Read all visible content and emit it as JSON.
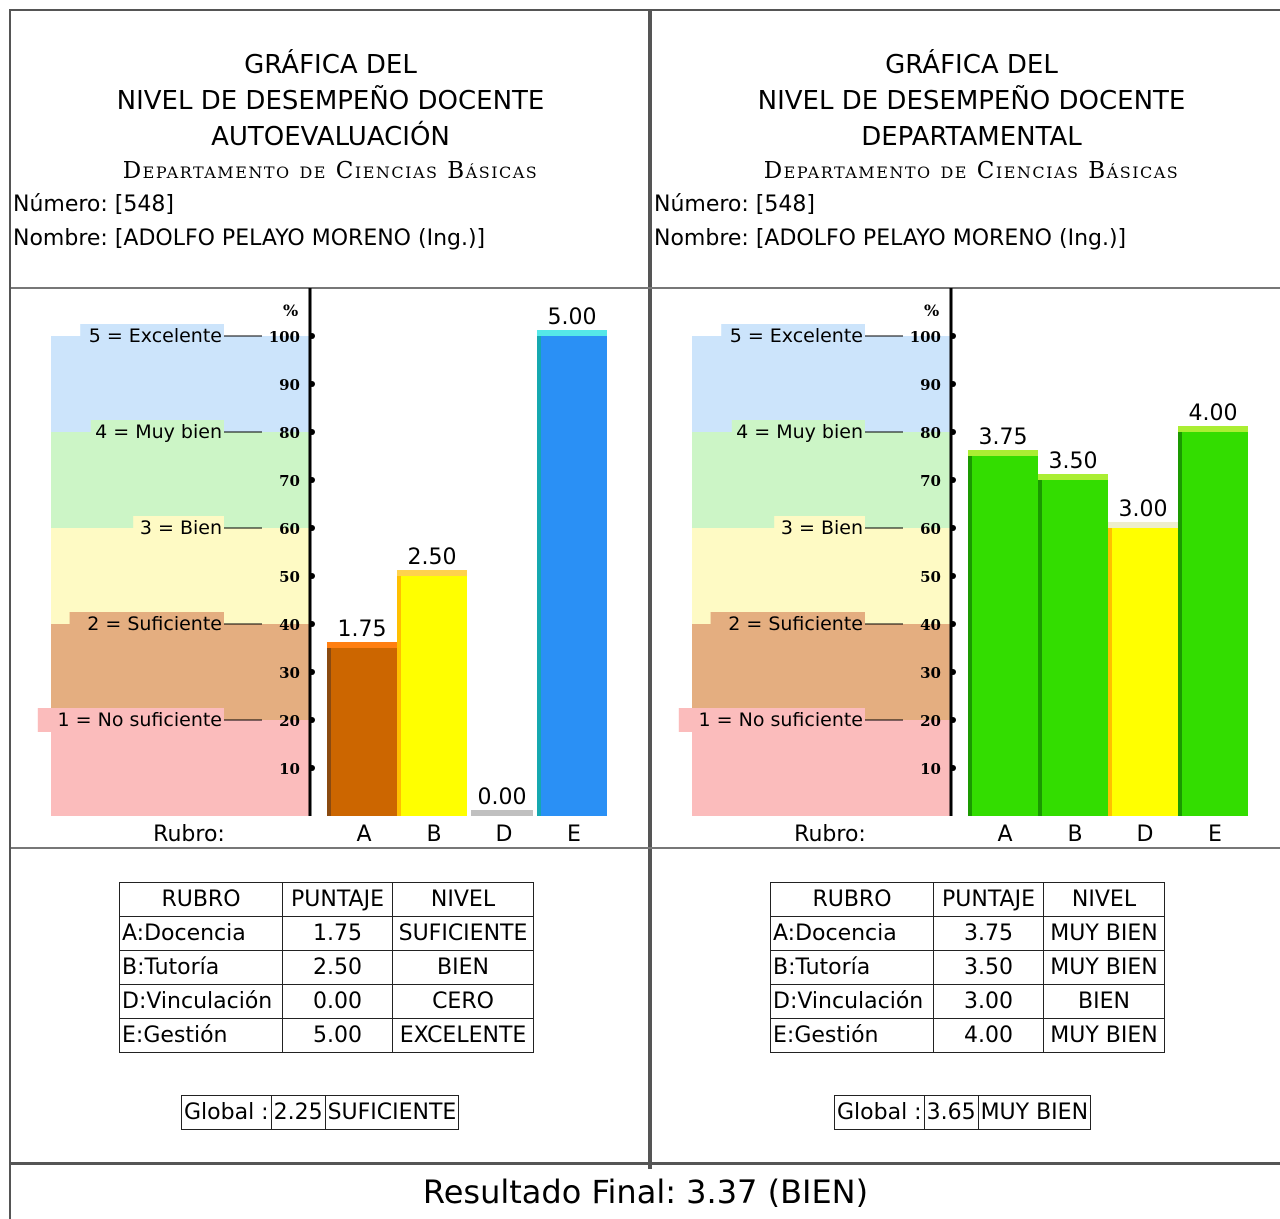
{
  "panels": [
    {
      "title_line1": "GRÁFICA DEL",
      "title_line2": "NIVEL DE DESEMPEÑO DOCENTE",
      "title_line3": "AUTOEVALUACIÓN",
      "department": "Departamento de Ciencias Básicas",
      "numero": "Número: [548]",
      "nombre": "Nombre: [ADOLFO PELAYO MORENO (Ing.)]",
      "table_headers": [
        "RUBRO",
        "PUNTAJE",
        "NIVEL"
      ],
      "table_rows": [
        {
          "rubro": "A:Docencia",
          "puntaje": "1.75",
          "nivel": "SUFICIENTE"
        },
        {
          "rubro": "B:Tutoría",
          "puntaje": "2.50",
          "nivel": "BIEN"
        },
        {
          "rubro": "D:Vinculación",
          "puntaje": "0.00",
          "nivel": "CERO"
        },
        {
          "rubro": "E:Gestión",
          "puntaje": "5.00",
          "nivel": "EXCELENTE"
        }
      ],
      "global_label": "Global :",
      "global_value": "2.25",
      "global_level": "SUFICIENTE"
    },
    {
      "title_line1": "GRÁFICA DEL",
      "title_line2": "NIVEL DE DESEMPEÑO DOCENTE",
      "title_line3": "DEPARTAMENTAL",
      "department": "Departamento de Ciencias Básicas",
      "numero": "Número: [548]",
      "nombre": "Nombre: [ADOLFO PELAYO MORENO (Ing.)]",
      "table_headers": [
        "RUBRO",
        "PUNTAJE",
        "NIVEL"
      ],
      "table_rows": [
        {
          "rubro": "A:Docencia",
          "puntaje": "3.75",
          "nivel": "MUY BIEN"
        },
        {
          "rubro": "B:Tutoría",
          "puntaje": "3.50",
          "nivel": "MUY BIEN"
        },
        {
          "rubro": "D:Vinculación",
          "puntaje": "3.00",
          "nivel": "BIEN"
        },
        {
          "rubro": "E:Gestión",
          "puntaje": "4.00",
          "nivel": "MUY BIEN"
        }
      ],
      "global_label": "Global :",
      "global_value": "3.65",
      "global_level": "MUY BIEN"
    }
  ],
  "final_result": "Resultado Final: 3.37 (BIEN)",
  "chart_data": [
    {
      "type": "bar",
      "categories": [
        "A",
        "B",
        "D",
        "E"
      ],
      "values": [
        1.75,
        2.5,
        0.0,
        5.0
      ],
      "value_labels": [
        "1.75",
        "2.50",
        "0.00",
        "5.00"
      ],
      "bar_colors": [
        "#cc6600",
        "#ffff00",
        "#c0c0c0",
        "#2a90f5"
      ],
      "bar_top_colors": [
        "#ff7f11",
        "#ffd24d",
        "#c0c0c0",
        "#55e8e8"
      ],
      "bar_edge_colors": [
        "#8a4a10",
        "#ffc000",
        "#a0a0a0",
        "#15a8b0"
      ],
      "xlabel": "Rubro:",
      "ylabel": "%",
      "ylim": [
        0,
        100
      ],
      "yticks": [
        10,
        20,
        30,
        40,
        50,
        60,
        70,
        80,
        90,
        100
      ],
      "bands": [
        {
          "label": "5 = Excelente",
          "from": 80,
          "to": 100,
          "tick": 100,
          "color": "#cce4fb"
        },
        {
          "label": "4 = Muy bien",
          "from": 60,
          "to": 80,
          "tick": 80,
          "color": "#ccf5c6"
        },
        {
          "label": "3 = Bien",
          "from": 40,
          "to": 60,
          "tick": 60,
          "color": "#fefac4"
        },
        {
          "label": "2 = Suficiente",
          "from": 20,
          "to": 40,
          "tick": 40,
          "color": "#e4ae80"
        },
        {
          "label": "1 = No suficiente",
          "from": 0,
          "to": 20,
          "tick": 20,
          "color": "#fbbcbc"
        }
      ]
    },
    {
      "type": "bar",
      "categories": [
        "A",
        "B",
        "D",
        "E"
      ],
      "values": [
        3.75,
        3.5,
        3.0,
        4.0
      ],
      "value_labels": [
        "3.75",
        "3.50",
        "3.00",
        "4.00"
      ],
      "bar_colors": [
        "#33dd00",
        "#33dd00",
        "#ffff00",
        "#33dd00"
      ],
      "bar_top_colors": [
        "#aaee33",
        "#aaee33",
        "#eeeecc",
        "#aaee33"
      ],
      "bar_edge_colors": [
        "#1a9900",
        "#1a9900",
        "#ffc000",
        "#1a9900"
      ],
      "xlabel": "Rubro:",
      "ylabel": "%",
      "ylim": [
        0,
        100
      ],
      "yticks": [
        10,
        20,
        30,
        40,
        50,
        60,
        70,
        80,
        90,
        100
      ],
      "bands": [
        {
          "label": "5 = Excelente",
          "from": 80,
          "to": 100,
          "tick": 100,
          "color": "#cce4fb"
        },
        {
          "label": "4 = Muy bien",
          "from": 60,
          "to": 80,
          "tick": 80,
          "color": "#ccf5c6"
        },
        {
          "label": "3 = Bien",
          "from": 40,
          "to": 60,
          "tick": 60,
          "color": "#fefac4"
        },
        {
          "label": "2 = Suficiente",
          "from": 20,
          "to": 40,
          "tick": 40,
          "color": "#e4ae80"
        },
        {
          "label": "1 = No suficiente",
          "from": 0,
          "to": 20,
          "tick": 20,
          "color": "#fbbcbc"
        }
      ]
    }
  ]
}
